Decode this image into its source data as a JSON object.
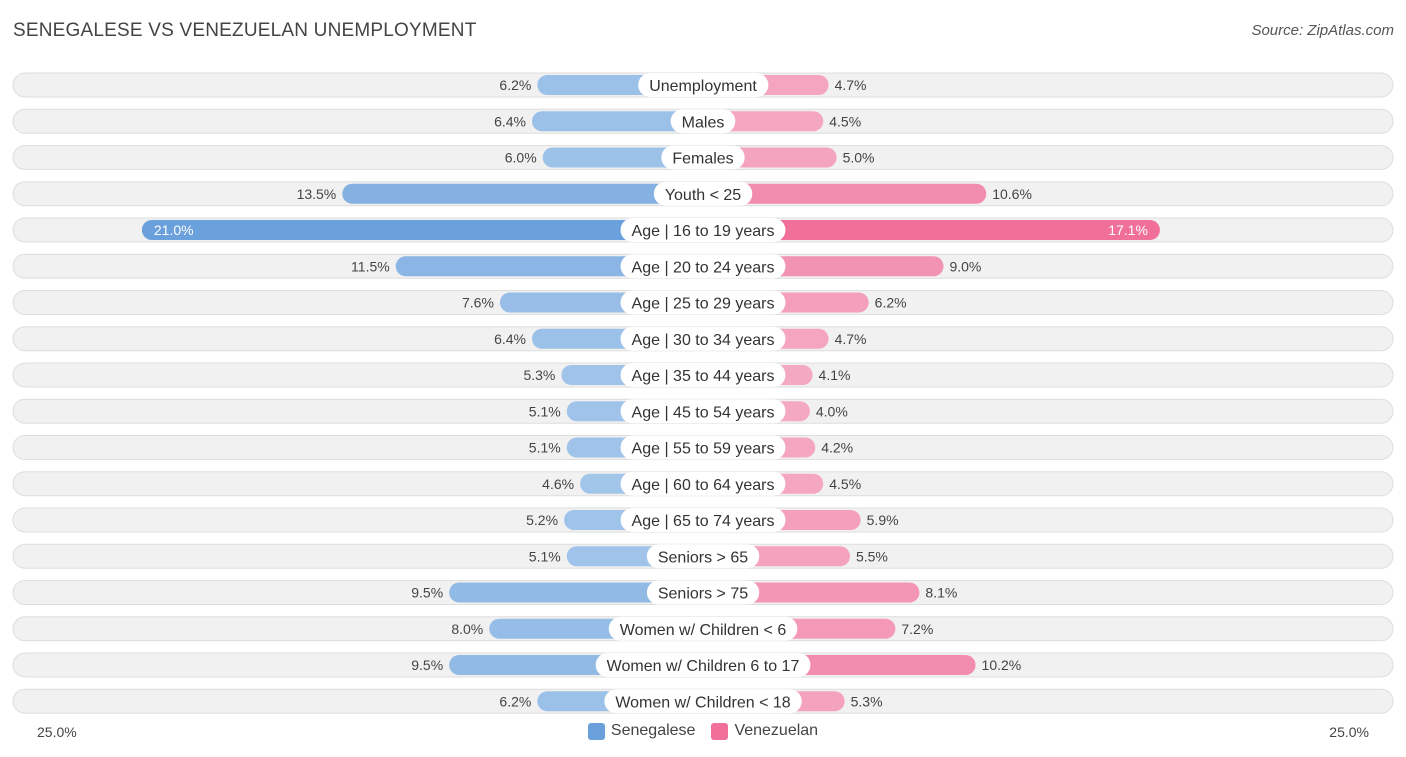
{
  "title": "SENEGALESE VS VENEZUELAN UNEMPLOYMENT",
  "source": "Source: ZipAtlas.com",
  "colors": {
    "left": "#6aa0dc",
    "left_light": "#a4c6ea",
    "right": "#f0709a",
    "right_light": "#f5a8c2"
  },
  "axis": {
    "left_label": "25.0%",
    "right_label": "25.0%"
  },
  "legend": [
    {
      "name": "Senegalese",
      "color": "#6aa0dc"
    },
    {
      "name": "Venezuelan",
      "color": "#f0709a"
    }
  ],
  "chart_data": {
    "type": "bar",
    "orientation": "horizontal-diverging",
    "title": "SENEGALESE VS VENEZUELAN UNEMPLOYMENT",
    "xlim": [
      0,
      25.0
    ],
    "unit": "%",
    "categories": [
      "Unemployment",
      "Males",
      "Females",
      "Youth < 25",
      "Age | 16 to 19 years",
      "Age | 20 to 24 years",
      "Age | 25 to 29 years",
      "Age | 30 to 34 years",
      "Age | 35 to 44 years",
      "Age | 45 to 54 years",
      "Age | 55 to 59 years",
      "Age | 60 to 64 years",
      "Age | 65 to 74 years",
      "Seniors > 65",
      "Seniors > 75",
      "Women w/ Children < 6",
      "Women w/ Children 6 to 17",
      "Women w/ Children < 18"
    ],
    "series": [
      {
        "name": "Senegalese",
        "values": [
          6.2,
          6.4,
          6.0,
          13.5,
          21.0,
          11.5,
          7.6,
          6.4,
          5.3,
          5.1,
          5.1,
          4.6,
          5.2,
          5.1,
          9.5,
          8.0,
          9.5,
          6.2
        ],
        "labels": [
          "6.2%",
          "6.4%",
          "6.0%",
          "13.5%",
          "21.0%",
          "11.5%",
          "7.6%",
          "6.4%",
          "5.3%",
          "5.1%",
          "5.1%",
          "4.6%",
          "5.2%",
          "5.1%",
          "9.5%",
          "8.0%",
          "9.5%",
          "6.2%"
        ]
      },
      {
        "name": "Venezuelan",
        "values": [
          4.7,
          4.5,
          5.0,
          10.6,
          17.1,
          9.0,
          6.2,
          4.7,
          4.1,
          4.0,
          4.2,
          4.5,
          5.9,
          5.5,
          8.1,
          7.2,
          10.2,
          5.3
        ],
        "labels": [
          "4.7%",
          "4.5%",
          "5.0%",
          "10.6%",
          "17.1%",
          "9.0%",
          "6.2%",
          "4.7%",
          "4.1%",
          "4.0%",
          "4.2%",
          "4.5%",
          "5.9%",
          "5.5%",
          "8.1%",
          "7.2%",
          "10.2%",
          "5.3%"
        ]
      }
    ]
  }
}
